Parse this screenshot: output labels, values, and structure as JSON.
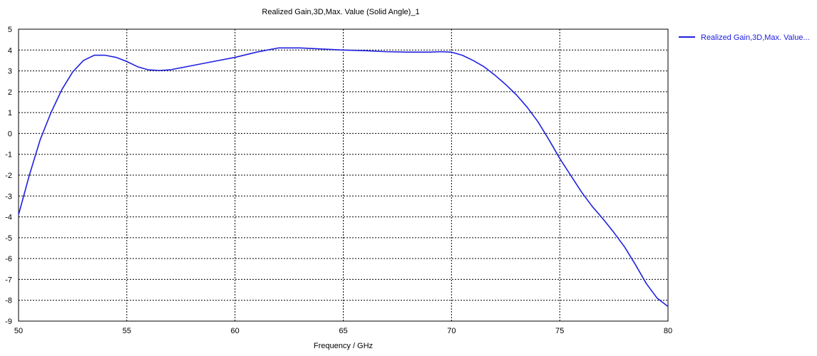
{
  "chart_data": {
    "type": "line",
    "title": "Realized Gain,3D,Max. Value (Solid Angle)_1",
    "xlabel": "Frequency / GHz",
    "ylabel": "",
    "xlim": [
      50,
      80
    ],
    "ylim": [
      -9,
      5
    ],
    "x_ticks": [
      50,
      55,
      60,
      65,
      70,
      75,
      80
    ],
    "y_ticks": [
      5,
      4,
      3,
      2,
      1,
      0,
      -1,
      -2,
      -3,
      -4,
      -5,
      -6,
      -7,
      -8,
      -9
    ],
    "grid": true,
    "grid_style": "dotted",
    "legend_position": "top-right-outside",
    "series": [
      {
        "name": "Realized Gain,3D,Max. Value...",
        "color": "#2020e0",
        "x": [
          50,
          50.5,
          51,
          51.5,
          52,
          52.5,
          53,
          53.5,
          54,
          54.5,
          55,
          55.5,
          56,
          56.5,
          57,
          58,
          59,
          60,
          61,
          62,
          63,
          64,
          65,
          66,
          67,
          68,
          69,
          69.5,
          70,
          70.5,
          71,
          71.5,
          72,
          72.5,
          73,
          73.5,
          74,
          74.5,
          75,
          75.5,
          76,
          76.5,
          77,
          77.5,
          78,
          78.5,
          79,
          79.5,
          80
        ],
        "y": [
          -3.9,
          -2.0,
          -0.3,
          1.0,
          2.1,
          2.95,
          3.5,
          3.75,
          3.75,
          3.65,
          3.45,
          3.2,
          3.05,
          3.02,
          3.05,
          3.25,
          3.45,
          3.65,
          3.9,
          4.1,
          4.1,
          4.05,
          4.0,
          3.97,
          3.92,
          3.9,
          3.9,
          3.92,
          3.9,
          3.75,
          3.5,
          3.2,
          2.8,
          2.35,
          1.85,
          1.25,
          0.55,
          -0.3,
          -1.2,
          -2.0,
          -2.8,
          -3.5,
          -4.1,
          -4.75,
          -5.45,
          -6.3,
          -7.2,
          -7.9,
          -8.3
        ]
      }
    ]
  }
}
